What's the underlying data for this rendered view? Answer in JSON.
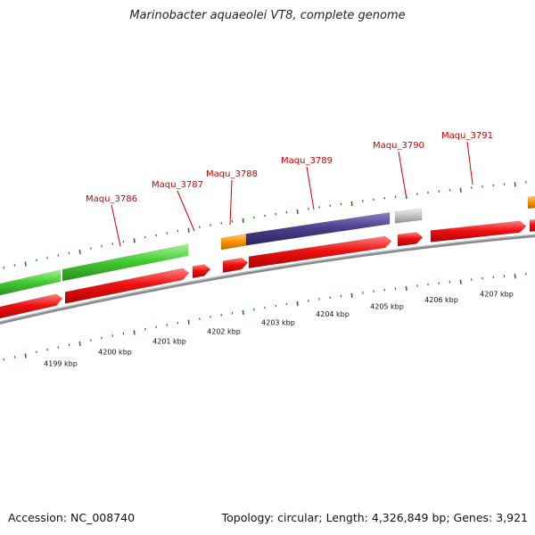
{
  "title": "Marinobacter aquaeolei VT8, complete genome",
  "footer": {
    "accession": "Accession: NC_008740",
    "summary": "Topology: circular; Length: 4,326,849 bp; Genes: 3,921"
  },
  "colors": {
    "cds_red": "#ee1111",
    "green_gene": "#44cc33",
    "orange_gene": "#ff9a00",
    "purple_gene": "#4c3f8c",
    "gray_gene": "#c8c8c8",
    "backbone": "#888888",
    "tick_green": "#227a1a",
    "label_red": "#cc0000"
  },
  "gene_labels": [
    "Maqu_3786",
    "Maqu_3787",
    "Maqu_3788",
    "Maqu_3789",
    "Maqu_3790",
    "Maqu_3791"
  ],
  "kbp_labels": [
    "4199 kbp",
    "4200 kbp",
    "4201 kbp",
    "4202 kbp",
    "4203 kbp",
    "4204 kbp",
    "4205 kbp",
    "4206 kbp",
    "4207 kbp"
  ]
}
